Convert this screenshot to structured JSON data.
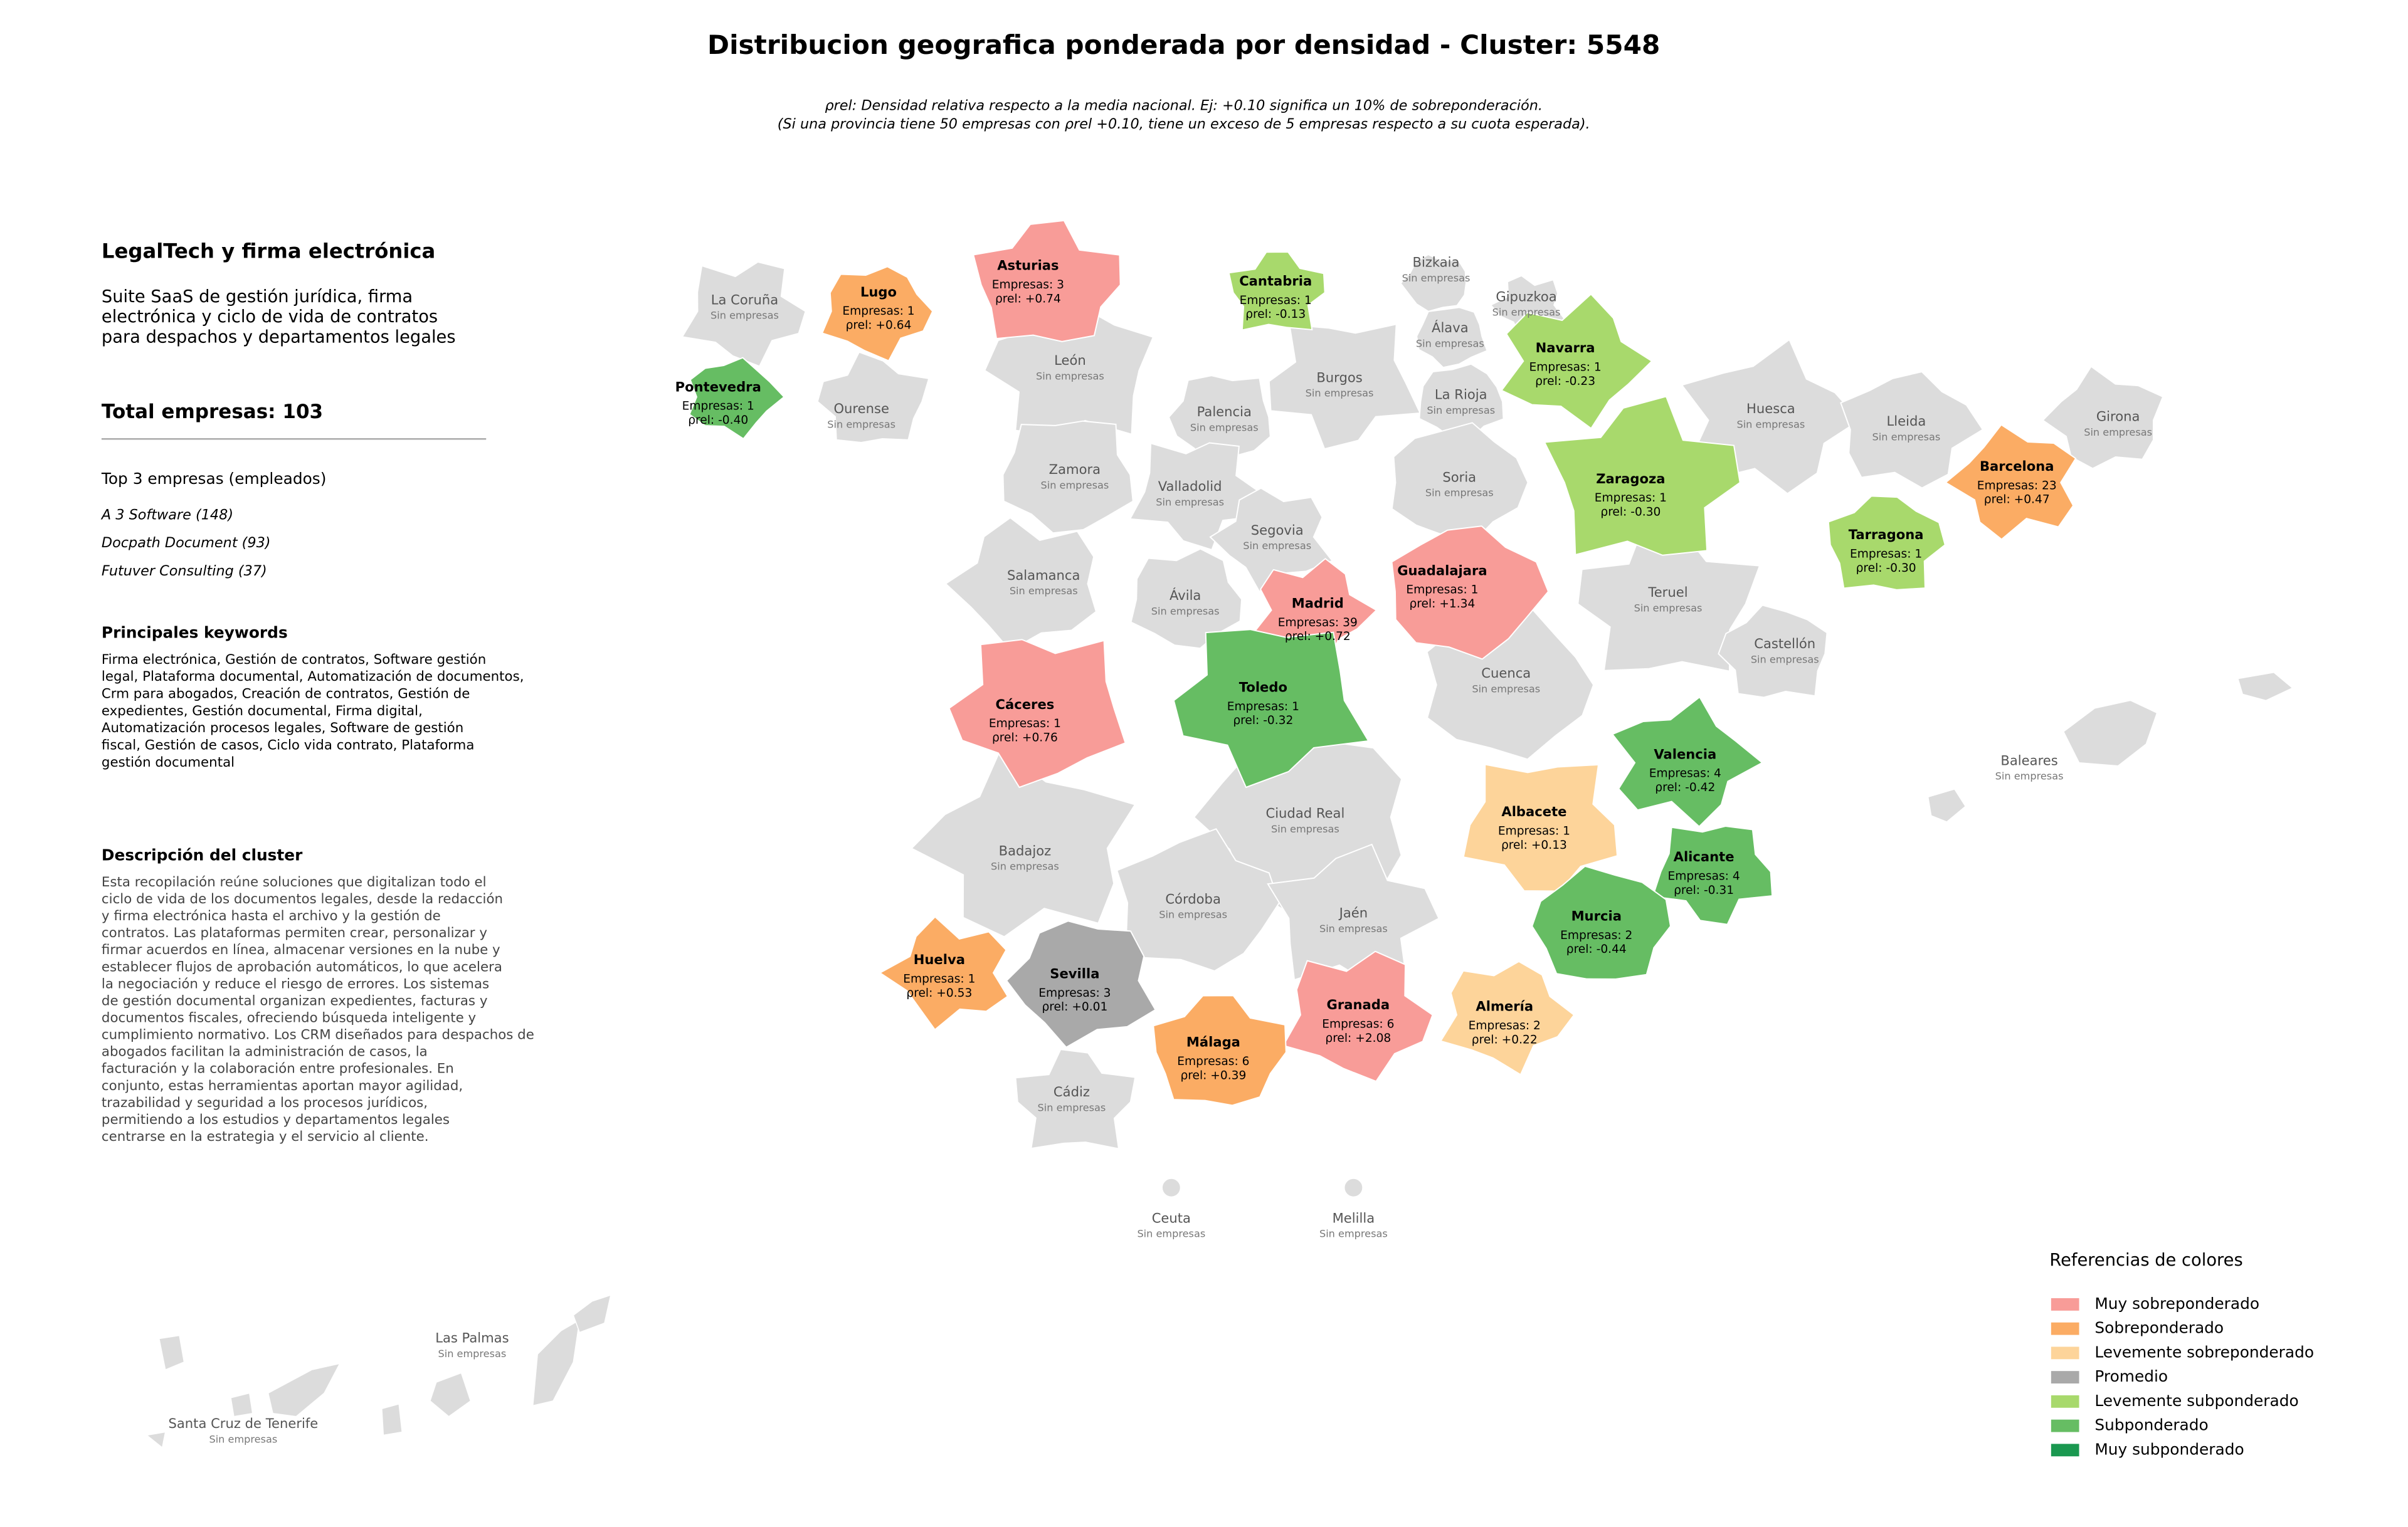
{
  "title": "Distribucion geografica ponderada por densidad - Cluster: 5548",
  "subtitle_lines": [
    "ρrel: Densidad relativa respecto a la media nacional. Ej: +0.10 significa un 10% de sobreponderación.",
    "(Si una provincia tiene 50 empresas con ρrel +0.10, tiene un exceso de 5 empresas respecto a su cuota esperada)."
  ],
  "panel": {
    "sector": "LegalTech y firma electrónica",
    "summary_lines": [
      "Suite SaaS de gestión jurídica, firma",
      "electrónica y ciclo de vida de contratos",
      "para despachos y departamentos legales"
    ],
    "total": "Total empresas: 103",
    "top_heading": "Top 3 empresas (empleados)",
    "top": [
      "A 3 Software (148)",
      "Docpath Document (93)",
      "Futuver Consulting (37)"
    ],
    "keywords_heading": "Principales keywords",
    "keywords_lines": [
      "Firma electrónica, Gestión de contratos, Software gestión",
      "legal, Plataforma documental, Automatización de documentos,",
      "Crm para abogados, Creación de contratos, Gestión de",
      "expedientes, Gestión documental, Firma digital,",
      "Automatización procesos legales, Software de gestión",
      "fiscal, Gestión de casos, Ciclo vida contrato, Plataforma",
      "gestión documental"
    ],
    "description_heading": "Descripción del cluster",
    "description_lines": [
      "Esta recopilación reúne soluciones que digitalizan todo el",
      "ciclo de vida de los documentos legales, desde la redacción",
      "y firma electrónica hasta el archivo y la gestión de",
      "contratos. Las plataformas permiten crear, personalizar y",
      "firmar acuerdos en línea, almacenar versiones en la nube y",
      "establecer flujos de aprobación automáticos, lo que acelera",
      "la negociación y reduce el riesgo de errores. Los sistemas",
      "de gestión documental organizan expedientes, facturas y",
      "documentos fiscales, ofreciendo búsqueda inteligente y",
      "cumplimiento normativo. Los CRM diseñados para despachos de",
      "abogados facilitan la administración de casos, la",
      "facturación y la colaboración entre profesionales. En",
      "conjunto, estas herramientas aportan mayor agilidad,",
      "trazabilidad y seguridad a los procesos jurídicos,",
      "permitiendo a los estudios y departamentos legales",
      "centrarse en la estrategia y el servicio al cliente."
    ]
  },
  "legend": {
    "title": "Referencias de colores",
    "items": [
      {
        "label": "Muy sobreponderado",
        "color": "#f89c98"
      },
      {
        "label": "Sobreponderado",
        "color": "#fbac64"
      },
      {
        "label": "Levemente sobreponderado",
        "color": "#fdd49a"
      },
      {
        "label": "Promedio",
        "color": "#a9a9a9"
      },
      {
        "label": "Levemente subponderado",
        "color": "#a8d96c"
      },
      {
        "label": "Subponderado",
        "color": "#66bd63"
      },
      {
        "label": "Muy subponderado",
        "color": "#1a9850"
      }
    ]
  },
  "no_data_color": "#dcdcdc",
  "provinces": [
    {
      "name": "La Coruña",
      "status": "Sin empresas"
    },
    {
      "name": "Lugo",
      "color": "#fbac64",
      "count": "Empresas: 1",
      "rho": "ρrel: +0.64"
    },
    {
      "name": "Asturias",
      "color": "#f89c98",
      "count": "Empresas: 3",
      "rho": "ρrel: +0.74"
    },
    {
      "name": "Cantabria",
      "color": "#a8d96c",
      "count": "Empresas: 1",
      "rho": "ρrel: -0.13"
    },
    {
      "name": "Bizkaia",
      "status": "Sin empresas"
    },
    {
      "name": "Gipuzkoa",
      "status": "Sin empresas"
    },
    {
      "name": "Álava",
      "status": "Sin empresas"
    },
    {
      "name": "Navarra",
      "color": "#a8d96c",
      "count": "Empresas: 1",
      "rho": "ρrel: -0.23"
    },
    {
      "name": "Pontevedra",
      "color": "#66bd63",
      "count": "Empresas: 1",
      "rho": "ρrel: -0.40"
    },
    {
      "name": "Ourense",
      "status": "Sin empresas"
    },
    {
      "name": "León",
      "status": "Sin empresas"
    },
    {
      "name": "Palencia",
      "status": "Sin empresas"
    },
    {
      "name": "Burgos",
      "status": "Sin empresas"
    },
    {
      "name": "La Rioja",
      "status": "Sin empresas"
    },
    {
      "name": "Huesca",
      "status": "Sin empresas"
    },
    {
      "name": "Lleida",
      "status": "Sin empresas"
    },
    {
      "name": "Girona",
      "status": "Sin empresas"
    },
    {
      "name": "Barcelona",
      "color": "#fbac64",
      "count": "Empresas: 23",
      "rho": "ρrel: +0.47"
    },
    {
      "name": "Zamora",
      "status": "Sin empresas"
    },
    {
      "name": "Valladolid",
      "status": "Sin empresas"
    },
    {
      "name": "Soria",
      "status": "Sin empresas"
    },
    {
      "name": "Zaragoza",
      "color": "#a8d96c",
      "count": "Empresas: 1",
      "rho": "ρrel: -0.30"
    },
    {
      "name": "Tarragona",
      "color": "#a8d96c",
      "count": "Empresas: 1",
      "rho": "ρrel: -0.30"
    },
    {
      "name": "Salamanca",
      "status": "Sin empresas"
    },
    {
      "name": "Segovia",
      "status": "Sin empresas"
    },
    {
      "name": "Ávila",
      "status": "Sin empresas"
    },
    {
      "name": "Madrid",
      "color": "#f89c98",
      "count": "Empresas: 39",
      "rho": "ρrel: +0.72"
    },
    {
      "name": "Guadalajara",
      "color": "#f89c98",
      "count": "Empresas: 1",
      "rho": "ρrel: +1.34"
    },
    {
      "name": "Teruel",
      "status": "Sin empresas"
    },
    {
      "name": "Castellón",
      "status": "Sin empresas"
    },
    {
      "name": "Cáceres",
      "color": "#f89c98",
      "count": "Empresas: 1",
      "rho": "ρrel: +0.76"
    },
    {
      "name": "Toledo",
      "color": "#66bd63",
      "count": "Empresas: 1",
      "rho": "ρrel: -0.32"
    },
    {
      "name": "Cuenca",
      "status": "Sin empresas"
    },
    {
      "name": "Valencia",
      "color": "#66bd63",
      "count": "Empresas: 4",
      "rho": "ρrel: -0.42"
    },
    {
      "name": "Baleares",
      "status": "Sin empresas"
    },
    {
      "name": "Badajoz",
      "status": "Sin empresas"
    },
    {
      "name": "Ciudad Real",
      "status": "Sin empresas"
    },
    {
      "name": "Albacete",
      "color": "#fdd49a",
      "count": "Empresas: 1",
      "rho": "ρrel: +0.13"
    },
    {
      "name": "Alicante",
      "color": "#66bd63",
      "count": "Empresas: 4",
      "rho": "ρrel: -0.31"
    },
    {
      "name": "Córdoba",
      "status": "Sin empresas"
    },
    {
      "name": "Jaén",
      "status": "Sin empresas"
    },
    {
      "name": "Murcia",
      "color": "#66bd63",
      "count": "Empresas: 2",
      "rho": "ρrel: -0.44"
    },
    {
      "name": "Huelva",
      "color": "#fbac64",
      "count": "Empresas: 1",
      "rho": "ρrel: +0.53"
    },
    {
      "name": "Sevilla",
      "color": "#a9a9a9",
      "count": "Empresas: 3",
      "rho": "ρrel: +0.01"
    },
    {
      "name": "Granada",
      "color": "#f89c98",
      "count": "Empresas: 6",
      "rho": "ρrel: +2.08"
    },
    {
      "name": "Almería",
      "color": "#fdd49a",
      "count": "Empresas: 2",
      "rho": "ρrel: +0.22"
    },
    {
      "name": "Málaga",
      "color": "#fbac64",
      "count": "Empresas: 6",
      "rho": "ρrel: +0.39"
    },
    {
      "name": "Cádiz",
      "status": "Sin empresas"
    },
    {
      "name": "Ceuta",
      "status": "Sin empresas"
    },
    {
      "name": "Melilla",
      "status": "Sin empresas"
    },
    {
      "name": "Las Palmas",
      "status": "Sin empresas"
    },
    {
      "name": "Santa Cruz de Tenerife",
      "status": "Sin empresas"
    }
  ]
}
